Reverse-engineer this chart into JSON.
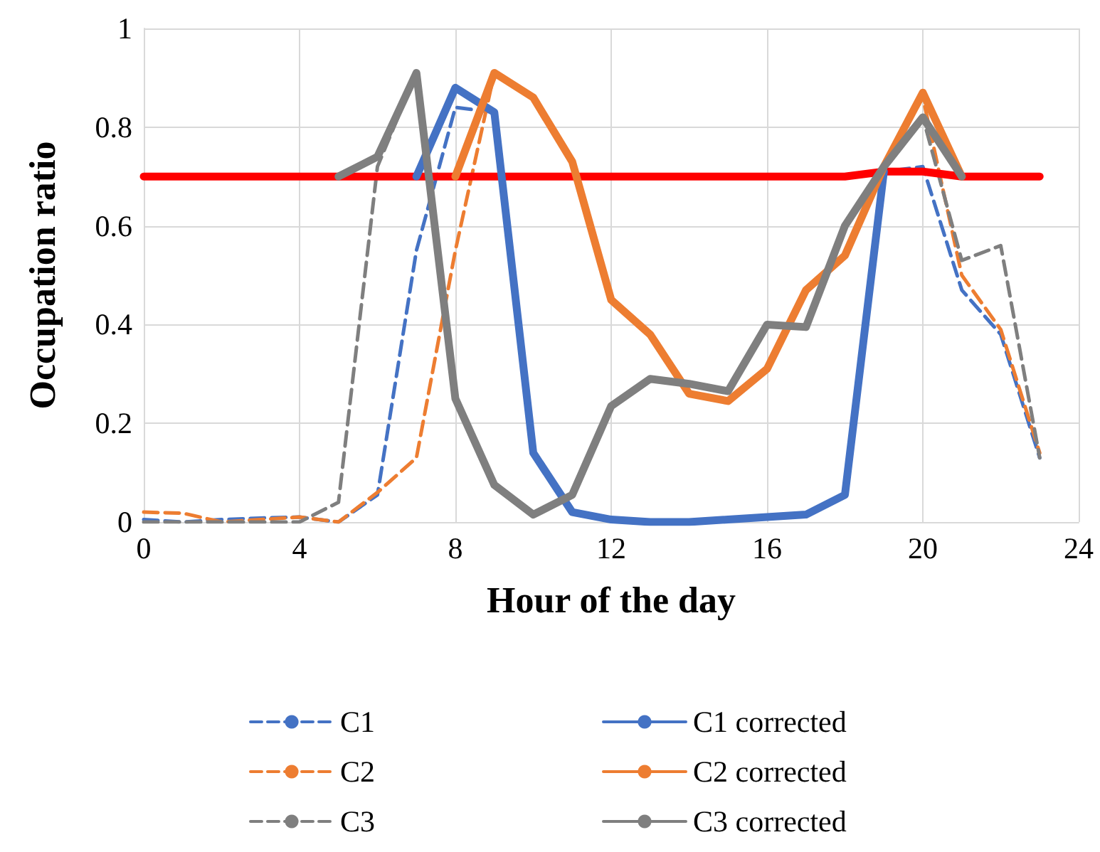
{
  "chart_data": {
    "type": "line",
    "xlabel": "Hour of the day",
    "ylabel": "Occupation ratio",
    "x": [
      0,
      1,
      2,
      3,
      4,
      5,
      6,
      7,
      8,
      9,
      10,
      11,
      12,
      13,
      14,
      15,
      16,
      17,
      18,
      19,
      20,
      21,
      22,
      23
    ],
    "xlim": [
      0,
      24
    ],
    "xticks": [
      0,
      4,
      8,
      12,
      16,
      20,
      24
    ],
    "ylim": [
      0,
      1
    ],
    "yticks": [
      0,
      0.2,
      0.4,
      0.6,
      0.8,
      1
    ],
    "grid": true,
    "legend": "bottom",
    "marker": "none",
    "series": [
      {
        "name": "C1",
        "color": "#4472c4",
        "line_style": "dashed",
        "values": [
          0.005,
          0,
          0.005,
          0.008,
          0.01,
          0,
          0.055,
          0.55,
          0.84,
          0.83,
          0.14,
          0.02,
          0.005,
          0,
          0,
          0.005,
          0.01,
          0.015,
          0.055,
          0.71,
          0.72,
          0.47,
          0.38,
          0.13
        ]
      },
      {
        "name": "C2",
        "color": "#ed7d31",
        "line_style": "dashed",
        "values": [
          0.02,
          0.018,
          0,
          0.005,
          0.01,
          0,
          0.06,
          0.13,
          0.55,
          0.91,
          0.86,
          0.73,
          0.45,
          0.38,
          0.26,
          0.245,
          0.31,
          0.47,
          0.54,
          0.72,
          0.86,
          0.5,
          0.39,
          0.14
        ]
      },
      {
        "name": "C3",
        "color": "#7f7f7f",
        "line_style": "dashed",
        "values": [
          0,
          0,
          0,
          0,
          0,
          0.04,
          0.72,
          0.91,
          0.25,
          0.075,
          0.015,
          0.055,
          0.235,
          0.29,
          0.28,
          0.265,
          0.4,
          0.395,
          0.6,
          0.72,
          0.82,
          0.53,
          0.56,
          0.13
        ]
      },
      {
        "color": "#ff0000",
        "line_style": "solid",
        "values": [
          0.7,
          0.7,
          0.7,
          0.7,
          0.7,
          0.7,
          0.7,
          0.7,
          0.7,
          0.7,
          0.7,
          0.7,
          0.7,
          0.7,
          0.7,
          0.7,
          0.7,
          0.7,
          0.7,
          0.71,
          0.71,
          0.7,
          0.7,
          0.7
        ]
      },
      {
        "name": "C1 corrected",
        "color": "#4472c4",
        "line_style": "solid",
        "values": [
          null,
          null,
          null,
          null,
          null,
          null,
          null,
          0.7,
          0.88,
          0.83,
          0.14,
          0.02,
          0.005,
          0,
          0,
          0.005,
          0.01,
          0.015,
          0.055,
          0.71,
          null,
          null,
          null,
          null
        ]
      },
      {
        "name": "C2 corrected",
        "color": "#ed7d31",
        "line_style": "solid",
        "values": [
          null,
          null,
          null,
          null,
          null,
          null,
          null,
          null,
          0.7,
          0.91,
          0.86,
          0.73,
          0.45,
          0.38,
          0.26,
          0.245,
          0.31,
          0.47,
          0.54,
          0.72,
          0.87,
          0.7,
          null,
          null
        ]
      },
      {
        "name": "C3 corrected",
        "color": "#7f7f7f",
        "line_style": "solid",
        "values": [
          null,
          null,
          null,
          null,
          null,
          0.7,
          0.74,
          0.91,
          0.25,
          0.075,
          0.015,
          0.055,
          0.235,
          0.29,
          0.28,
          0.265,
          0.4,
          0.395,
          0.6,
          0.72,
          0.82,
          0.7,
          null,
          null
        ]
      }
    ]
  }
}
